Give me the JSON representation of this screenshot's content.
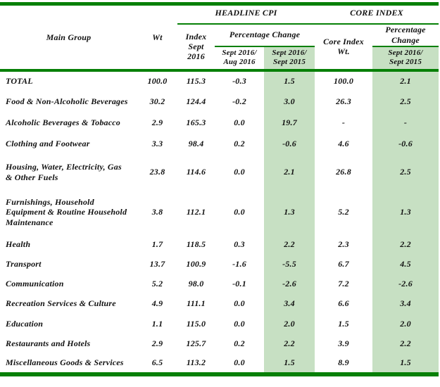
{
  "colors": {
    "rule_green": "#078007",
    "highlight_green": "#c7e0c3"
  },
  "table": {
    "columns": {
      "main_group": "Main Group",
      "wt": "Wt",
      "headline_group": "HEADLINE CPI",
      "core_group": "CORE INDEX",
      "index_sept_2016": "Index\nSept\n2016",
      "headline_pct_change": "Percentage Change",
      "mom": "Sept 2016/\nAug 2016",
      "yoy": "Sept 2016/\nSept 2015",
      "core_wt": "Core Index\nWt.",
      "core_pct_change": "Percentage\nChange",
      "core_yoy": "Sept 2016/\nSept 2015"
    },
    "rows": [
      {
        "label": "TOTAL",
        "values": [
          "100.0",
          "115.3",
          "-0.3",
          "1.5",
          "100.0",
          "2.1"
        ]
      },
      {
        "label": "Food & Non-Alcoholic Beverages",
        "values": [
          "30.2",
          "124.4",
          "-0.2",
          "3.0",
          "26.3",
          "2.5"
        ]
      },
      {
        "label": "Alcoholic Beverages & Tobacco",
        "values": [
          "2.9",
          "165.3",
          "0.0",
          "19.7",
          "-",
          "-"
        ]
      },
      {
        "label": "Clothing and Footwear",
        "values": [
          "3.3",
          "98.4",
          "0.2",
          "-0.6",
          "4.6",
          "-0.6"
        ]
      },
      {
        "label": "Housing, Water, Electricity, Gas\n& Other Fuels",
        "values": [
          "23.8",
          "114.6",
          "0.0",
          "2.1",
          "26.8",
          "2.5"
        ]
      },
      {
        "label": "Furnishings, Household\nEquipment  & Routine Household\nMaintenance",
        "values": [
          "3.8",
          "112.1",
          "0.0",
          "1.3",
          "5.2",
          "1.3"
        ]
      },
      {
        "label": "Health",
        "values": [
          "1.7",
          "118.5",
          "0.3",
          "2.2",
          "2.3",
          "2.2"
        ]
      },
      {
        "label": "Transport",
        "values": [
          "13.7",
          "100.9",
          "-1.6",
          "-5.5",
          "6.7",
          "4.5"
        ]
      },
      {
        "label": "Communication",
        "values": [
          "5.2",
          "98.0",
          "-0.1",
          "-2.6",
          "7.2",
          "-2.6"
        ]
      },
      {
        "label": "Recreation Services & Culture",
        "values": [
          "4.9",
          "111.1",
          "0.0",
          "3.4",
          "6.6",
          "3.4"
        ]
      },
      {
        "label": "Education",
        "values": [
          "1.1",
          "115.0",
          "0.0",
          "2.0",
          "1.5",
          "2.0"
        ]
      },
      {
        "label": "Restaurants and Hotels",
        "values": [
          "2.9",
          "125.7",
          "0.2",
          "2.2",
          "3.9",
          "2.2"
        ]
      },
      {
        "label": "Miscellaneous Goods & Services",
        "values": [
          "6.5",
          "113.2",
          "0.0",
          "1.5",
          "8.9",
          "1.5"
        ]
      }
    ]
  }
}
